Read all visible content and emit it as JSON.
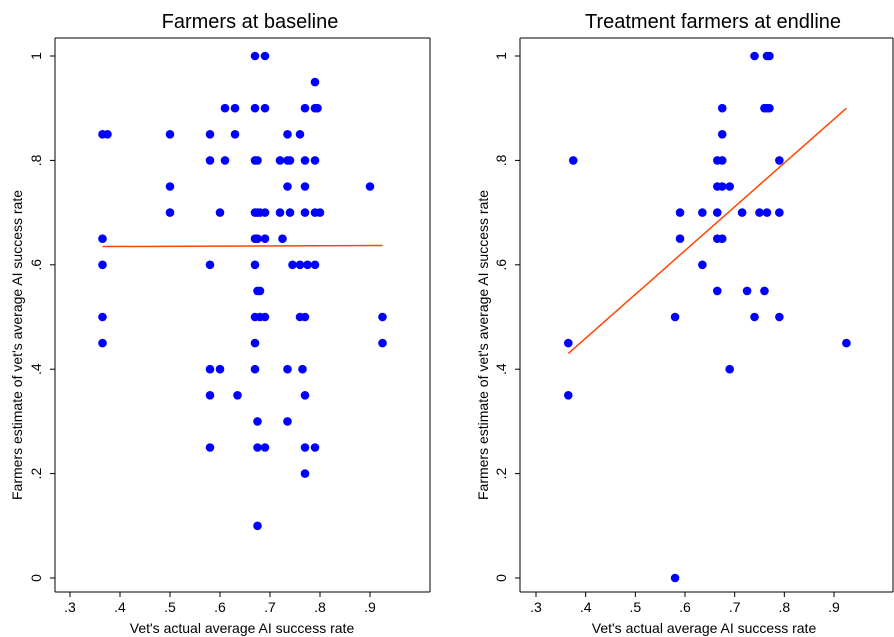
{
  "colors": {
    "points": "#0000FF",
    "fit_line": "#FF4500",
    "axes": "#000000"
  },
  "chart_data": [
    {
      "type": "scatter",
      "title": "Farmers at baseline",
      "xlabel": "Vet's actual average AI success rate",
      "ylabel": "Farmers estimate of vet's average AI success rate",
      "xlim": [
        0.3,
        0.93
      ],
      "ylim": [
        0,
        1
      ],
      "xticks": [
        0.3,
        0.4,
        0.5,
        0.6,
        0.7,
        0.8,
        0.9
      ],
      "xtick_labels": [
        ".3",
        ".4",
        ".5",
        ".6",
        ".7",
        ".8",
        ".9"
      ],
      "yticks": [
        0,
        0.2,
        0.4,
        0.6,
        0.8,
        1
      ],
      "ytick_labels": [
        "0",
        ".2",
        ".4",
        ".6",
        ".8",
        "1"
      ],
      "grid": false,
      "legend": "none",
      "fit_line": {
        "x": [
          0.365,
          0.925
        ],
        "y": [
          0.635,
          0.637
        ]
      },
      "points": [
        [
          0.365,
          0.85
        ],
        [
          0.375,
          0.85
        ],
        [
          0.365,
          0.65
        ],
        [
          0.365,
          0.6
        ],
        [
          0.365,
          0.5
        ],
        [
          0.365,
          0.45
        ],
        [
          0.5,
          0.85
        ],
        [
          0.5,
          0.75
        ],
        [
          0.5,
          0.7
        ],
        [
          0.58,
          0.85
        ],
        [
          0.58,
          0.8
        ],
        [
          0.58,
          0.6
        ],
        [
          0.58,
          0.4
        ],
        [
          0.58,
          0.35
        ],
        [
          0.58,
          0.25
        ],
        [
          0.6,
          0.7
        ],
        [
          0.6,
          0.4
        ],
        [
          0.61,
          0.9
        ],
        [
          0.61,
          0.8
        ],
        [
          0.63,
          0.9
        ],
        [
          0.63,
          0.85
        ],
        [
          0.635,
          0.35
        ],
        [
          0.67,
          1.0
        ],
        [
          0.67,
          0.9
        ],
        [
          0.67,
          0.8
        ],
        [
          0.67,
          0.7
        ],
        [
          0.67,
          0.65
        ],
        [
          0.67,
          0.6
        ],
        [
          0.67,
          0.5
        ],
        [
          0.67,
          0.45
        ],
        [
          0.67,
          0.4
        ],
        [
          0.675,
          0.8
        ],
        [
          0.675,
          0.7
        ],
        [
          0.675,
          0.65
        ],
        [
          0.675,
          0.55
        ],
        [
          0.675,
          0.3
        ],
        [
          0.675,
          0.25
        ],
        [
          0.675,
          0.1
        ],
        [
          0.68,
          0.7
        ],
        [
          0.68,
          0.55
        ],
        [
          0.68,
          0.5
        ],
        [
          0.69,
          1.0
        ],
        [
          0.69,
          0.9
        ],
        [
          0.69,
          0.7
        ],
        [
          0.69,
          0.65
        ],
        [
          0.69,
          0.5
        ],
        [
          0.69,
          0.25
        ],
        [
          0.72,
          0.8
        ],
        [
          0.72,
          0.7
        ],
        [
          0.725,
          0.65
        ],
        [
          0.735,
          0.85
        ],
        [
          0.735,
          0.8
        ],
        [
          0.735,
          0.75
        ],
        [
          0.735,
          0.4
        ],
        [
          0.735,
          0.3
        ],
        [
          0.74,
          0.8
        ],
        [
          0.74,
          0.7
        ],
        [
          0.745,
          0.6
        ],
        [
          0.76,
          0.85
        ],
        [
          0.76,
          0.6
        ],
        [
          0.76,
          0.5
        ],
        [
          0.765,
          0.4
        ],
        [
          0.77,
          0.9
        ],
        [
          0.77,
          0.8
        ],
        [
          0.77,
          0.75
        ],
        [
          0.77,
          0.7
        ],
        [
          0.77,
          0.5
        ],
        [
          0.77,
          0.35
        ],
        [
          0.77,
          0.25
        ],
        [
          0.77,
          0.2
        ],
        [
          0.775,
          0.6
        ],
        [
          0.79,
          0.95
        ],
        [
          0.79,
          0.9
        ],
        [
          0.79,
          0.8
        ],
        [
          0.79,
          0.7
        ],
        [
          0.79,
          0.6
        ],
        [
          0.79,
          0.25
        ],
        [
          0.795,
          0.9
        ],
        [
          0.8,
          0.7
        ],
        [
          0.9,
          0.75
        ],
        [
          0.925,
          0.5
        ],
        [
          0.925,
          0.45
        ]
      ]
    },
    {
      "type": "scatter",
      "title": "Treatment farmers at endline",
      "xlabel": "Vet's actual average AI success rate",
      "ylabel": "Farmers estimate of vet's average AI success rate",
      "xlim": [
        0.3,
        0.93
      ],
      "ylim": [
        0,
        1
      ],
      "xticks": [
        0.3,
        0.4,
        0.5,
        0.6,
        0.7,
        0.8,
        0.9
      ],
      "xtick_labels": [
        ".3",
        ".4",
        ".5",
        ".6",
        ".7",
        ".8",
        ".9"
      ],
      "yticks": [
        0,
        0.2,
        0.4,
        0.6,
        0.8,
        1
      ],
      "ytick_labels": [
        "0",
        ".2",
        ".4",
        ".6",
        ".8",
        "1"
      ],
      "grid": false,
      "legend": "none",
      "fit_line": {
        "x": [
          0.365,
          0.925
        ],
        "y": [
          0.43,
          0.9
        ]
      },
      "points": [
        [
          0.365,
          0.45
        ],
        [
          0.365,
          0.35
        ],
        [
          0.375,
          0.8
        ],
        [
          0.58,
          0.5
        ],
        [
          0.58,
          0.0
        ],
        [
          0.59,
          0.7
        ],
        [
          0.59,
          0.65
        ],
        [
          0.635,
          0.7
        ],
        [
          0.635,
          0.6
        ],
        [
          0.665,
          0.8
        ],
        [
          0.665,
          0.75
        ],
        [
          0.665,
          0.7
        ],
        [
          0.665,
          0.65
        ],
        [
          0.665,
          0.55
        ],
        [
          0.675,
          0.9
        ],
        [
          0.675,
          0.85
        ],
        [
          0.675,
          0.8
        ],
        [
          0.675,
          0.75
        ],
        [
          0.675,
          0.65
        ],
        [
          0.69,
          0.75
        ],
        [
          0.69,
          0.4
        ],
        [
          0.715,
          0.7
        ],
        [
          0.725,
          0.55
        ],
        [
          0.74,
          1.0
        ],
        [
          0.74,
          0.5
        ],
        [
          0.75,
          0.7
        ],
        [
          0.76,
          0.9
        ],
        [
          0.76,
          0.55
        ],
        [
          0.765,
          1.0
        ],
        [
          0.765,
          0.9
        ],
        [
          0.765,
          0.7
        ],
        [
          0.77,
          1.0
        ],
        [
          0.77,
          0.9
        ],
        [
          0.79,
          0.8
        ],
        [
          0.79,
          0.7
        ],
        [
          0.79,
          0.5
        ],
        [
          0.925,
          0.45
        ]
      ]
    }
  ]
}
